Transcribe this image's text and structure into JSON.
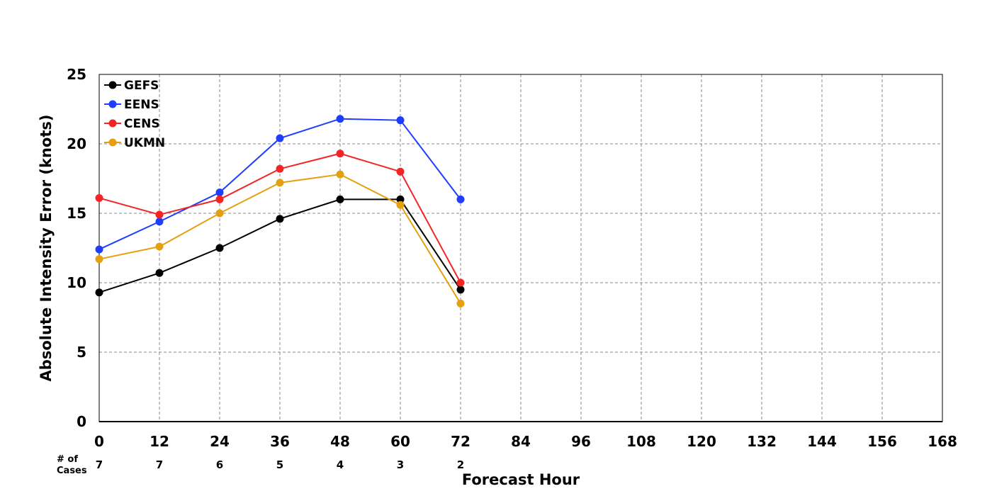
{
  "chart_data": {
    "type": "line",
    "title": "",
    "xlabel": "Forecast Hour",
    "ylabel": "Absolute Intensity Error (knots)",
    "xlim": [
      0,
      168
    ],
    "ylim": [
      0,
      25
    ],
    "x_ticks": [
      0,
      12,
      24,
      36,
      48,
      60,
      72,
      84,
      96,
      108,
      120,
      132,
      144,
      156,
      168
    ],
    "y_ticks": [
      0,
      5,
      10,
      15,
      20,
      25
    ],
    "grid": true,
    "legend_position": "top-left",
    "cases_label_line1": "# of",
    "cases_label_line2": "Cases",
    "cases": [
      {
        "x": 0,
        "n": "7"
      },
      {
        "x": 12,
        "n": "7"
      },
      {
        "x": 24,
        "n": "6"
      },
      {
        "x": 36,
        "n": "5"
      },
      {
        "x": 48,
        "n": "4"
      },
      {
        "x": 60,
        "n": "3"
      },
      {
        "x": 72,
        "n": "2"
      }
    ],
    "x": [
      0,
      12,
      24,
      36,
      48,
      60,
      72
    ],
    "series": [
      {
        "name": "GEFS",
        "color": "#000000",
        "values": [
          9.3,
          10.7,
          12.5,
          14.6,
          16.0,
          16.0,
          9.5
        ]
      },
      {
        "name": "EENS",
        "color": "#1f3dff",
        "values": [
          12.4,
          14.4,
          16.5,
          20.4,
          21.8,
          21.7,
          16.0
        ]
      },
      {
        "name": "CENS",
        "color": "#f42424",
        "values": [
          16.1,
          14.9,
          16.0,
          18.2,
          19.3,
          18.0,
          10.0
        ]
      },
      {
        "name": "UKMN",
        "color": "#e5a010",
        "values": [
          11.7,
          12.6,
          15.0,
          17.2,
          17.8,
          15.6,
          8.5
        ]
      }
    ]
  }
}
